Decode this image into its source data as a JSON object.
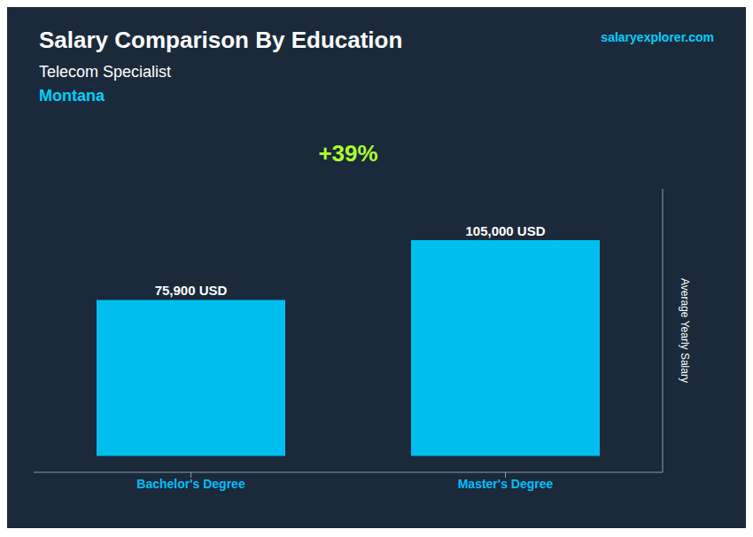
{
  "chart_data": {
    "type": "bar",
    "title": "Salary Comparison By Education",
    "subtitle": "Telecom Specialist",
    "annotations": [
      {
        "text": "Montana",
        "color": "#00CFFF"
      },
      {
        "text": "salaryexplorer.com",
        "color": "#00CFFF"
      },
      {
        "text": "+39%",
        "color": "#ADFF2F"
      }
    ],
    "ylabel": "Average Yearly Salary",
    "categories": [
      "Bachelor's Degree",
      "Master's Degree"
    ],
    "values": [
      75900,
      105000
    ],
    "value_labels": [
      "75,900 USD",
      "105,000 USD"
    ],
    "data_labels": true,
    "color": "#00BFEE",
    "ylim": [
      -8000,
      130000
    ],
    "tick_labels": "x",
    "grid": false
  }
}
